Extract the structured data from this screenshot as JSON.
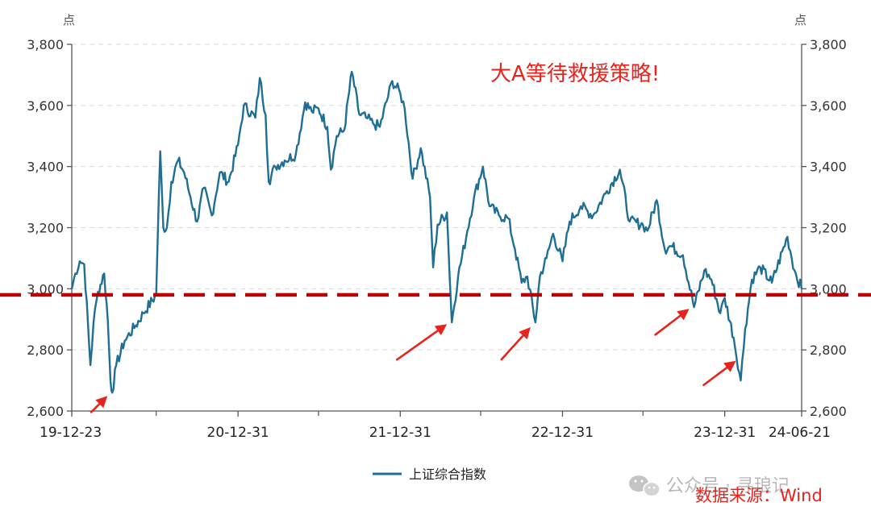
{
  "chart_data": {
    "type": "line",
    "title": "",
    "y_unit": "点",
    "ylim": [
      2600,
      3800
    ],
    "y_ticks": [
      "2,600",
      "2,800",
      "3,000",
      "3,200",
      "3,400",
      "3,600",
      "3,800"
    ],
    "y_tick_values": [
      2600,
      2800,
      3000,
      3200,
      3400,
      3600,
      3800
    ],
    "x_ticks": [
      "19-12-23",
      "20-12-31",
      "21-12-31",
      "22-12-31",
      "23-12-31",
      "24-06-21"
    ],
    "x_tick_dates": [
      "2019-12-23",
      "2020-12-31",
      "2021-12-31",
      "2022-12-31",
      "2023-12-31",
      "2024-06-21"
    ],
    "x_range": [
      "2019-12-23",
      "2024-06-21"
    ],
    "grid": true,
    "grid_style": "dashed",
    "legend_position": "bottom",
    "series": [
      {
        "name": "上证综合指数",
        "color": "#1f6e94",
        "points": [
          [
            "2019-12-23",
            3000
          ],
          [
            "2019-12-31",
            3050
          ],
          [
            "2020-01-10",
            3090
          ],
          [
            "2020-01-20",
            3080
          ],
          [
            "2020-02-03",
            2750
          ],
          [
            "2020-02-10",
            2890
          ],
          [
            "2020-02-20",
            2990
          ],
          [
            "2020-03-05",
            3050
          ],
          [
            "2020-03-13",
            2900
          ],
          [
            "2020-03-19",
            2700
          ],
          [
            "2020-03-23",
            2660
          ],
          [
            "2020-04-01",
            2750
          ],
          [
            "2020-04-20",
            2830
          ],
          [
            "2020-05-15",
            2880
          ],
          [
            "2020-06-01",
            2920
          ],
          [
            "2020-06-30",
            2980
          ],
          [
            "2020-07-03",
            3150
          ],
          [
            "2020-07-09",
            3450
          ],
          [
            "2020-07-16",
            3200
          ],
          [
            "2020-07-24",
            3200
          ],
          [
            "2020-08-03",
            3350
          ],
          [
            "2020-08-18",
            3420
          ],
          [
            "2020-09-01",
            3380
          ],
          [
            "2020-09-15",
            3300
          ],
          [
            "2020-09-30",
            3220
          ],
          [
            "2020-10-15",
            3330
          ],
          [
            "2020-11-02",
            3240
          ],
          [
            "2020-11-20",
            3380
          ],
          [
            "2020-12-10",
            3350
          ],
          [
            "2020-12-31",
            3470
          ],
          [
            "2021-01-13",
            3600
          ],
          [
            "2021-02-08",
            3560
          ],
          [
            "2021-02-18",
            3690
          ],
          [
            "2021-03-03",
            3570
          ],
          [
            "2021-03-10",
            3350
          ],
          [
            "2021-03-25",
            3400
          ],
          [
            "2021-04-15",
            3420
          ],
          [
            "2021-05-10",
            3440
          ],
          [
            "2021-05-31",
            3610
          ],
          [
            "2021-06-15",
            3580
          ],
          [
            "2021-06-30",
            3590
          ],
          [
            "2021-07-20",
            3530
          ],
          [
            "2021-07-28",
            3390
          ],
          [
            "2021-08-10",
            3500
          ],
          [
            "2021-08-27",
            3520
          ],
          [
            "2021-09-13",
            3710
          ],
          [
            "2021-09-30",
            3570
          ],
          [
            "2021-10-15",
            3560
          ],
          [
            "2021-10-31",
            3540
          ],
          [
            "2021-11-15",
            3530
          ],
          [
            "2021-12-13",
            3680
          ],
          [
            "2021-12-31",
            3640
          ],
          [
            "2022-01-10",
            3590
          ],
          [
            "2022-01-28",
            3360
          ],
          [
            "2022-02-15",
            3460
          ],
          [
            "2022-03-08",
            3300
          ],
          [
            "2022-03-15",
            3070
          ],
          [
            "2022-03-25",
            3210
          ],
          [
            "2022-04-15",
            3250
          ],
          [
            "2022-04-26",
            2890
          ],
          [
            "2022-05-10",
            3040
          ],
          [
            "2022-05-31",
            3190
          ],
          [
            "2022-06-15",
            3300
          ],
          [
            "2022-07-05",
            3400
          ],
          [
            "2022-07-20",
            3270
          ],
          [
            "2022-08-10",
            3240
          ],
          [
            "2022-08-31",
            3230
          ],
          [
            "2022-09-15",
            3130
          ],
          [
            "2022-09-30",
            3020
          ],
          [
            "2022-10-13",
            3040
          ],
          [
            "2022-10-31",
            2890
          ],
          [
            "2022-11-10",
            3040
          ],
          [
            "2022-11-25",
            3100
          ],
          [
            "2022-12-10",
            3180
          ],
          [
            "2022-12-31",
            3090
          ],
          [
            "2023-01-16",
            3220
          ],
          [
            "2023-02-10",
            3270
          ],
          [
            "2023-03-10",
            3240
          ],
          [
            "2023-04-10",
            3320
          ],
          [
            "2023-05-09",
            3390
          ],
          [
            "2023-05-31",
            3220
          ],
          [
            "2023-06-30",
            3210
          ],
          [
            "2023-07-10",
            3190
          ],
          [
            "2023-07-31",
            3290
          ],
          [
            "2023-08-18",
            3130
          ],
          [
            "2023-09-01",
            3140
          ],
          [
            "2023-09-28",
            3110
          ],
          [
            "2023-10-23",
            2940
          ],
          [
            "2023-11-15",
            3060
          ],
          [
            "2023-12-01",
            3030
          ],
          [
            "2023-12-21",
            2920
          ],
          [
            "2023-12-31",
            2970
          ],
          [
            "2024-01-20",
            2840
          ],
          [
            "2024-02-05",
            2700
          ],
          [
            "2024-02-15",
            2870
          ],
          [
            "2024-03-01",
            3030
          ],
          [
            "2024-03-20",
            3070
          ],
          [
            "2024-04-15",
            3020
          ],
          [
            "2024-05-20",
            3170
          ],
          [
            "2024-06-05",
            3060
          ],
          [
            "2024-06-21",
            3000
          ]
        ]
      }
    ],
    "reference_line": {
      "value": 2980,
      "color": "#c00000",
      "style": "dashed"
    },
    "annotations": [
      {
        "text": "大A等待救援策略!",
        "color": "#e8231c"
      }
    ],
    "arrows": [
      {
        "target_date": "2020-03-23",
        "target_value": 2665,
        "color": "#e8231c"
      },
      {
        "target_date": "2022-04-26",
        "target_value": 2900,
        "color": "#e8231c"
      },
      {
        "target_date": "2022-10-31",
        "target_value": 2890,
        "color": "#e8231c"
      },
      {
        "target_date": "2023-10-23",
        "target_value": 2950,
        "color": "#e8231c"
      },
      {
        "target_date": "2024-02-05",
        "target_value": 2780,
        "color": "#e8231c"
      }
    ]
  },
  "legend_label": "上证综合指数",
  "source_text": "数据来源：Wind",
  "watermark_text": "公众号 · 寻琅记",
  "colors": {
    "series": "#1f6e94",
    "reference": "#c00000",
    "annotation": "#e8231c"
  }
}
